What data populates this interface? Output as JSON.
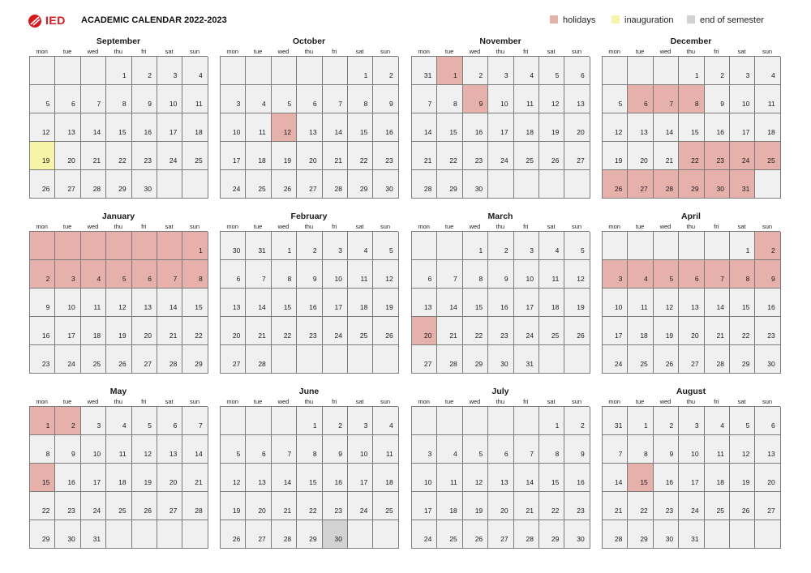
{
  "header": {
    "logo": "IED",
    "title": "ACADEMIC CALENDAR 2022-2023"
  },
  "legend": [
    {
      "key": "holiday",
      "label": "holidays",
      "color": "#e6b0ab"
    },
    {
      "key": "inaug",
      "label": "inauguration",
      "color": "#f6f4a6"
    },
    {
      "key": "endsem",
      "label": "end of semester",
      "color": "#d2d2d2"
    }
  ],
  "weekdays": [
    "mon",
    "tue",
    "wed",
    "thu",
    "fri",
    "sat",
    "sun"
  ],
  "months": [
    {
      "name": "September",
      "offset": 3,
      "prevTail": [],
      "days": 30,
      "nextHead": 0,
      "holidays": [],
      "inaug": [
        19
      ],
      "endsem": []
    },
    {
      "name": "October",
      "offset": 5,
      "prevTail": [],
      "days": 31,
      "nextHead": 0,
      "holidays": [
        12
      ],
      "inaug": [],
      "endsem": []
    },
    {
      "name": "November",
      "offset": 0,
      "prevTail": [
        31
      ],
      "days": 30,
      "nextHead": 0,
      "holidays": [
        1,
        9
      ],
      "inaug": [],
      "endsem": []
    },
    {
      "name": "December",
      "offset": 3,
      "prevTail": [],
      "days": 31,
      "nextHead": 0,
      "holidays": [
        6,
        7,
        8,
        22,
        23,
        24,
        25,
        26,
        27,
        28,
        29,
        30,
        31
      ],
      "inaug": [],
      "endsem": [],
      "blankHolidays": true
    },
    {
      "name": "January",
      "offset": 6,
      "prevTail": [],
      "days": 29,
      "nextHead": 0,
      "holidays": [
        1,
        2,
        3,
        4,
        5,
        6,
        7,
        8
      ],
      "inaug": [],
      "endsem": [],
      "leadHoliday": true
    },
    {
      "name": "February",
      "offset": 0,
      "prevTail": [
        30,
        31
      ],
      "days": 28,
      "nextHead": 0,
      "holidays": [],
      "inaug": [],
      "endsem": []
    },
    {
      "name": "March",
      "offset": 2,
      "prevTail": [],
      "days": 31,
      "nextHead": 0,
      "holidays": [
        20
      ],
      "inaug": [],
      "endsem": []
    },
    {
      "name": "April",
      "offset": 5,
      "prevTail": [],
      "days": 30,
      "nextHead": 0,
      "holidays": [
        2,
        3,
        4,
        5,
        6,
        7,
        8,
        9
      ],
      "inaug": [],
      "endsem": []
    },
    {
      "name": "May",
      "offset": 0,
      "prevTail": [],
      "days": 31,
      "nextHead": 0,
      "holidays": [
        1,
        2,
        15
      ],
      "inaug": [],
      "endsem": []
    },
    {
      "name": "June",
      "offset": 3,
      "prevTail": [],
      "days": 30,
      "nextHead": 0,
      "holidays": [],
      "inaug": [],
      "endsem": [
        30
      ]
    },
    {
      "name": "July",
      "offset": 5,
      "prevTail": [],
      "days": 30,
      "nextHead": 0,
      "holidays": [],
      "inaug": [],
      "endsem": []
    },
    {
      "name": "August",
      "offset": 0,
      "prevTail": [
        31
      ],
      "days": 31,
      "nextHead": 0,
      "holidays": [
        15
      ],
      "inaug": [],
      "endsem": []
    }
  ]
}
